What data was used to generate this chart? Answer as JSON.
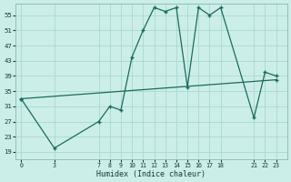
{
  "xlabel": "Humidex (Indice chaleur)",
  "bg_color": "#cceee8",
  "grid_color": "#aad8d0",
  "line_color": "#1a6b5e",
  "curve1_x": [
    0,
    3,
    7,
    8,
    9,
    10,
    11,
    12,
    13,
    14,
    15,
    16,
    17,
    18,
    21,
    22,
    23
  ],
  "curve1_y": [
    33,
    20,
    27,
    31,
    30,
    44,
    51,
    57,
    56,
    57,
    36,
    57,
    55,
    57,
    28,
    40,
    39
  ],
  "curve2_x": [
    0,
    23
  ],
  "curve2_y": [
    33,
    38
  ],
  "xticks": [
    0,
    3,
    7,
    8,
    9,
    10,
    11,
    12,
    13,
    14,
    15,
    16,
    17,
    18,
    21,
    22,
    23
  ],
  "yticks": [
    19,
    23,
    27,
    31,
    35,
    39,
    43,
    47,
    51,
    55
  ],
  "xlim": [
    -0.5,
    24
  ],
  "ylim": [
    17,
    58
  ]
}
